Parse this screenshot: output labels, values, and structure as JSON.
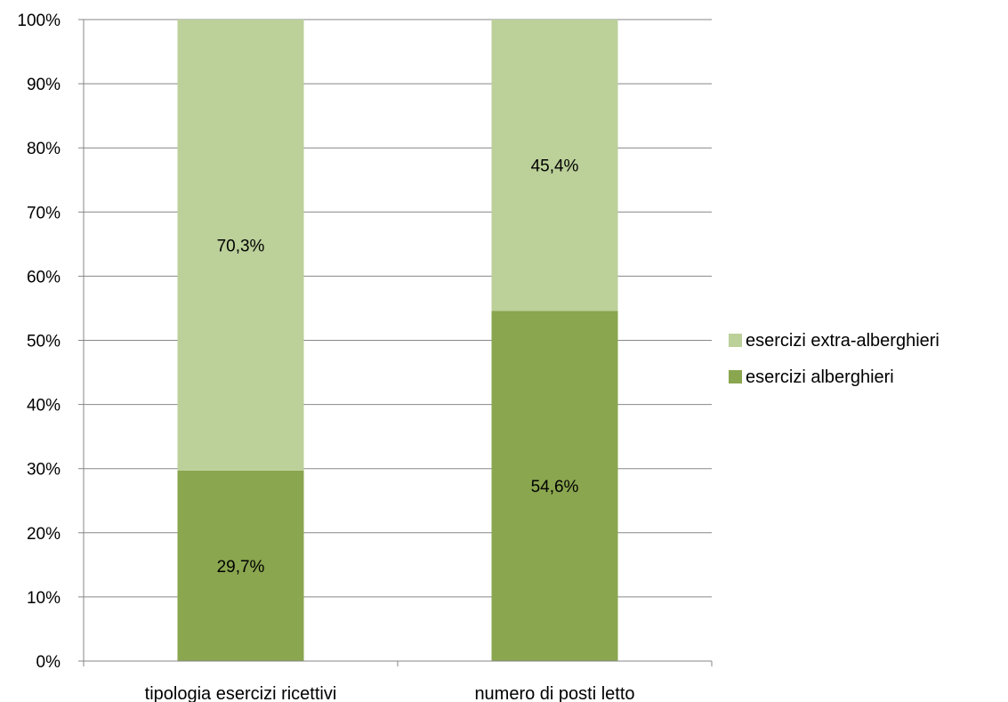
{
  "chart_data": {
    "type": "bar",
    "stacked": true,
    "normalized_percent": true,
    "categories": [
      "tipologia esercizi ricettivi",
      "numero di posti letto"
    ],
    "series": [
      {
        "name": "esercizi alberghieri",
        "values": [
          29.7,
          54.6
        ],
        "labels": [
          "29,7%",
          "54,6%"
        ],
        "color": "#8aa64f"
      },
      {
        "name": "esercizi extra-alberghieri",
        "values": [
          70.3,
          45.4
        ],
        "labels": [
          "70,3%",
          "45,4%"
        ],
        "color": "#bcd09a"
      }
    ],
    "y_ticks": [
      "0%",
      "10%",
      "20%",
      "30%",
      "40%",
      "50%",
      "60%",
      "70%",
      "80%",
      "90%",
      "100%"
    ],
    "ylim": [
      0,
      100
    ],
    "grid": true,
    "gridline_color": "#878787",
    "legend_position": "right",
    "legend_order": [
      "esercizi extra-alberghieri",
      "esercizi alberghieri"
    ]
  }
}
